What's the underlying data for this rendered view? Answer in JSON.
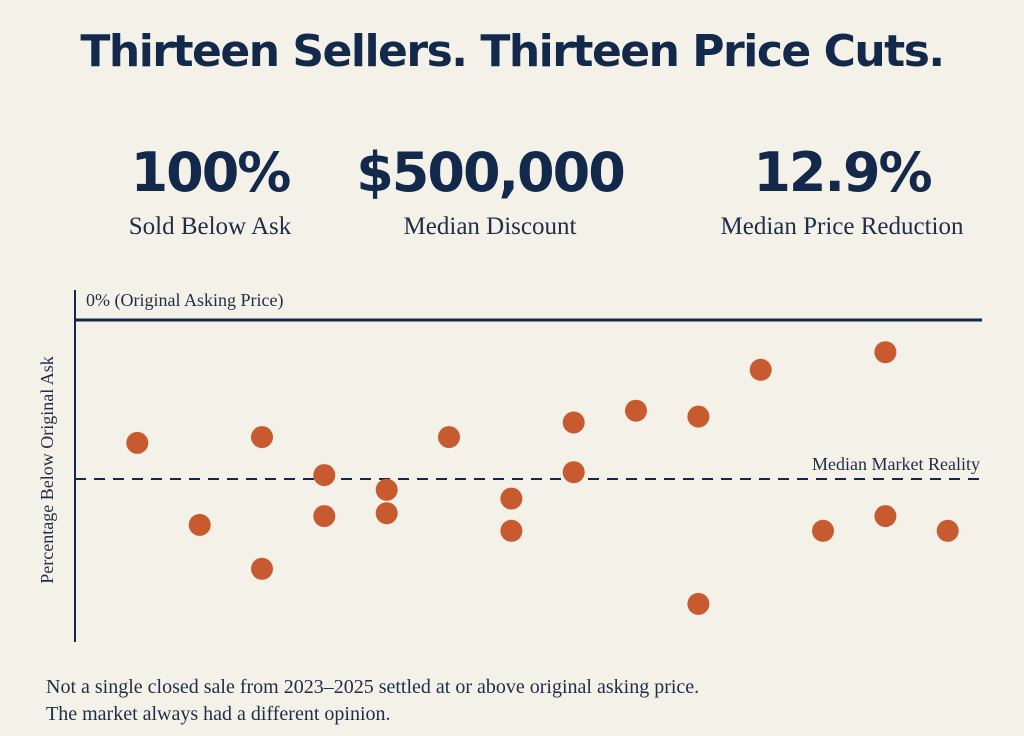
{
  "title": "Thirteen Sellers. Thirteen Price Cuts.",
  "stats": [
    {
      "value": "100%",
      "label": "Sold Below Ask"
    },
    {
      "value": "$500,000",
      "label": "Median Discount"
    },
    {
      "value": "12.9%",
      "label": "Median Price Reduction"
    }
  ],
  "colors": {
    "background": "#f4f1e8",
    "navy": "#13294b",
    "dot": "#c85a30"
  },
  "chart_data": {
    "type": "scatter",
    "ylabel": "Percentage Below Original Ask",
    "top_line_label": "0% (Original Asking Price)",
    "median_line_label": "Median Market Reality",
    "grid": false,
    "points": [
      {
        "x": 1,
        "y": 0.42
      },
      {
        "x": 2,
        "y": 0.7
      },
      {
        "x": 3,
        "y": 0.4
      },
      {
        "x": 3,
        "y": 0.85
      },
      {
        "x": 4,
        "y": 0.53
      },
      {
        "x": 4,
        "y": 0.67
      },
      {
        "x": 5,
        "y": 0.58
      },
      {
        "x": 5,
        "y": 0.66
      },
      {
        "x": 6,
        "y": 0.4
      },
      {
        "x": 7,
        "y": 0.61
      },
      {
        "x": 7,
        "y": 0.72
      },
      {
        "x": 8,
        "y": 0.35
      },
      {
        "x": 8,
        "y": 0.52
      },
      {
        "x": 9,
        "y": 0.31
      },
      {
        "x": 10,
        "y": 0.33
      },
      {
        "x": 10,
        "y": 0.97
      },
      {
        "x": 11,
        "y": 0.17
      },
      {
        "x": 12,
        "y": 0.72
      },
      {
        "x": 13,
        "y": 0.11
      },
      {
        "x": 13,
        "y": 0.67
      },
      {
        "x": 14,
        "y": 0.72
      }
    ],
    "median_y": 0.54,
    "xlim": [
      0,
      14.55
    ],
    "ylim": [
      0,
      1.1
    ]
  },
  "footnote": [
    "Not a single closed sale from 2023–2025 settled at or above original asking price.",
    "The market always had a different opinion."
  ]
}
